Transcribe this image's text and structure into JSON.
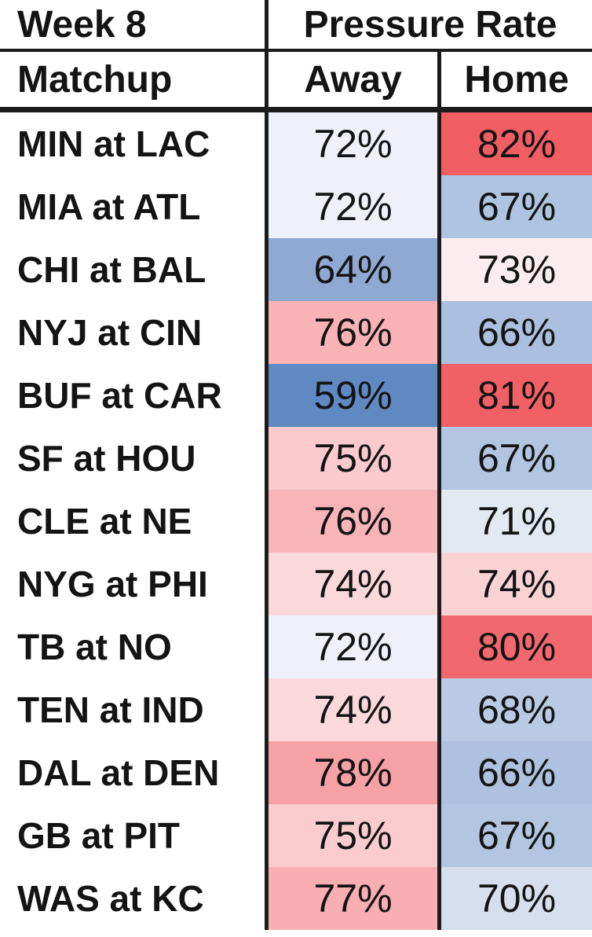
{
  "header": {
    "week_label": "Week 8",
    "pressure_rate_label": "Pressure Rate",
    "matchup_label": "Matchup",
    "away_label": "Away",
    "home_label": "Home"
  },
  "colors": {
    "border": "#1b1b1b",
    "background": "#ffffff",
    "text": "#141414",
    "scale_low_blue": "#6089C4",
    "scale_mid_white": "#F2F2F5",
    "scale_high_red": "#F05D63"
  },
  "chart_data": {
    "type": "table",
    "title": "Week 8 Pressure Rate",
    "columns": [
      "Matchup",
      "Away",
      "Home"
    ],
    "legend_note": "heatmap: blue = low pressure rate, red = high pressure rate",
    "rows": [
      {
        "matchup": "MIN at LAC",
        "away": 72,
        "home": 82,
        "away_label": "72%",
        "home_label": "82%",
        "away_color": "#EEF1F8",
        "home_color": "#F05D63"
      },
      {
        "matchup": "MIA at ATL",
        "away": 72,
        "home": 67,
        "away_label": "72%",
        "home_label": "67%",
        "away_color": "#EEF1F8",
        "home_color": "#AFC4E0"
      },
      {
        "matchup": "CHI at BAL",
        "away": 64,
        "home": 73,
        "away_label": "64%",
        "home_label": "73%",
        "away_color": "#8FA9D3",
        "home_color": "#FBEDEF"
      },
      {
        "matchup": "NYJ at CIN",
        "away": 76,
        "home": 66,
        "away_label": "76%",
        "home_label": "66%",
        "away_color": "#F9B2B6",
        "home_color": "#AAC0DE"
      },
      {
        "matchup": "BUF at CAR",
        "away": 59,
        "home": 81,
        "away_label": "59%",
        "home_label": "81%",
        "away_color": "#6089C4",
        "home_color": "#F06065"
      },
      {
        "matchup": "SF at HOU",
        "away": 75,
        "home": 67,
        "away_label": "75%",
        "home_label": "67%",
        "away_color": "#FACACC",
        "home_color": "#B2C6E1"
      },
      {
        "matchup": "CLE at NE",
        "away": 76,
        "home": 71,
        "away_label": "76%",
        "home_label": "71%",
        "away_color": "#F8B5B9",
        "home_color": "#E3E9F3"
      },
      {
        "matchup": "NYG at PHI",
        "away": 74,
        "home": 74,
        "away_label": "74%",
        "home_label": "74%",
        "away_color": "#FBD8DA",
        "home_color": "#F9D2D4"
      },
      {
        "matchup": "TB at NO",
        "away": 72,
        "home": 80,
        "away_label": "72%",
        "home_label": "80%",
        "away_color": "#EEF1F8",
        "home_color": "#F1696E"
      },
      {
        "matchup": "TEN at IND",
        "away": 74,
        "home": 68,
        "away_label": "74%",
        "home_label": "68%",
        "away_color": "#FBD9DB",
        "home_color": "#B9CBE4"
      },
      {
        "matchup": "DAL at DEN",
        "away": 78,
        "home": 66,
        "away_label": "78%",
        "home_label": "66%",
        "away_color": "#F5A1A5",
        "home_color": "#AEC2DF"
      },
      {
        "matchup": "GB at PIT",
        "away": 75,
        "home": 67,
        "away_label": "75%",
        "home_label": "67%",
        "away_color": "#FACCCE",
        "home_color": "#B2C6E1"
      },
      {
        "matchup": "WAS at KC",
        "away": 77,
        "home": 70,
        "away_label": "77%",
        "home_label": "70%",
        "away_color": "#F8AEB2",
        "home_color": "#D6DFEE"
      }
    ]
  }
}
